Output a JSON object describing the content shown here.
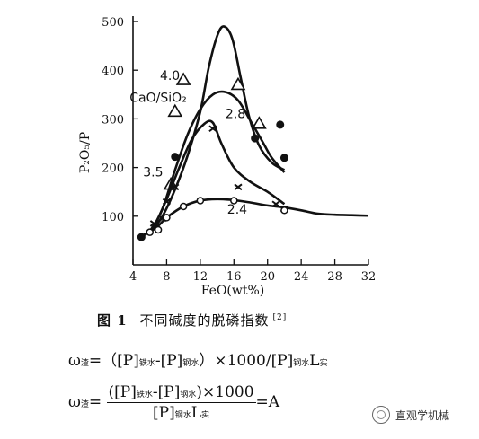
{
  "chart_data": {
    "type": "line",
    "xlabel": "FeO(wt%)",
    "ylabel": "P₂O₅/P",
    "xlim": [
      4,
      32
    ],
    "ylim": [
      0,
      500
    ],
    "x_ticks": [
      4,
      8,
      12,
      16,
      20,
      24,
      28,
      32
    ],
    "y_ticks": [
      100,
      200,
      300,
      400,
      500
    ],
    "grid": false,
    "legend_title": "CaO/SiO₂",
    "series": [
      {
        "name": "4.0",
        "marker": "triangle",
        "curve": [
          [
            4.5,
            57
          ],
          [
            6,
            68
          ],
          [
            7.5,
            100
          ],
          [
            9,
            155
          ],
          [
            10.5,
            225
          ],
          [
            12,
            315
          ],
          [
            13,
            405
          ],
          [
            14,
            470
          ],
          [
            14.8,
            490
          ],
          [
            15.8,
            465
          ],
          [
            16.8,
            385
          ],
          [
            17.8,
            305
          ],
          [
            19,
            245
          ],
          [
            20.5,
            210
          ],
          [
            22,
            195
          ]
        ],
        "points": [
          [
            8.5,
            165
          ],
          [
            9,
            315
          ],
          [
            10,
            380
          ],
          [
            16.5,
            370
          ],
          [
            19,
            290
          ]
        ]
      },
      {
        "name": "3.5",
        "marker": "filled-dot",
        "curve": [
          [
            4.5,
            57
          ],
          [
            6,
            70
          ],
          [
            7.5,
            115
          ],
          [
            9,
            195
          ],
          [
            10.5,
            268
          ],
          [
            12,
            320
          ],
          [
            13.5,
            350
          ],
          [
            15,
            355
          ],
          [
            16.5,
            338
          ],
          [
            18,
            295
          ],
          [
            19.5,
            250
          ],
          [
            20.5,
            220
          ],
          [
            22,
            190
          ]
        ],
        "points": [
          [
            5,
            57
          ],
          [
            9,
            222
          ],
          [
            18.5,
            260
          ],
          [
            21.5,
            288
          ],
          [
            22,
            220
          ]
        ]
      },
      {
        "name": "2.8",
        "marker": "x",
        "curve": [
          [
            5,
            57
          ],
          [
            6.5,
            80
          ],
          [
            8,
            135
          ],
          [
            9.5,
            200
          ],
          [
            11,
            258
          ],
          [
            12.5,
            290
          ],
          [
            13.5,
            292
          ],
          [
            14.5,
            250
          ],
          [
            16,
            200
          ],
          [
            18,
            170
          ],
          [
            20,
            150
          ],
          [
            22,
            125
          ]
        ],
        "points": [
          [
            6.5,
            85
          ],
          [
            7.5,
            95
          ],
          [
            8,
            130
          ],
          [
            9,
            160
          ],
          [
            13.5,
            280
          ],
          [
            16.5,
            160
          ],
          [
            21,
            125
          ],
          [
            22,
            115
          ]
        ]
      },
      {
        "name": "2.4",
        "marker": "open-circle",
        "curve": [
          [
            6,
            67
          ],
          [
            7,
            80
          ],
          [
            8,
            97
          ],
          [
            10,
            120
          ],
          [
            12,
            132
          ],
          [
            14,
            135
          ],
          [
            16,
            133
          ],
          [
            18,
            128
          ],
          [
            20,
            122
          ],
          [
            22,
            118
          ],
          [
            24,
            112
          ],
          [
            26,
            105
          ],
          [
            28,
            103
          ],
          [
            30,
            102
          ],
          [
            32,
            101
          ]
        ],
        "points": [
          [
            6,
            67
          ],
          [
            7,
            72
          ],
          [
            8,
            97
          ],
          [
            10,
            120
          ],
          [
            12,
            132
          ],
          [
            16,
            132
          ],
          [
            22,
            112
          ]
        ]
      }
    ]
  },
  "labels": {
    "series_4_0": "4.0",
    "series_3_5": "3.5",
    "series_2_8": "2.8",
    "series_2_4": "2.4",
    "legend_title": "CaO/SiO₂"
  },
  "caption": {
    "fig_label": "图 1",
    "title": "不同碱度的脱磷指数",
    "ref": "[2]"
  },
  "formula1": {
    "omega": "ω",
    "omega_sub": "渣",
    "eq": "=（",
    "p1": "[P]",
    "p1_sub": "铁水",
    "dash": "-",
    "p2": "[P]",
    "p2_sub": "钢水",
    "tail": "）×1000/",
    "p3": "[P]",
    "p3_sub": "钢水",
    "L": "L",
    "L_sub": "实"
  },
  "formula2": {
    "omega": "ω",
    "omega_sub": "渣",
    "eq": "=",
    "num_open": "([P]",
    "num_sub1": "铁水",
    "num_mid": "-[P]",
    "num_sub2": "钢水",
    "num_close": ")×1000",
    "den_p": "[P]",
    "den_sub1": "钢水",
    "den_L": "L",
    "den_sub2": "实",
    "result": "=A"
  },
  "watermark": "直观学机械"
}
